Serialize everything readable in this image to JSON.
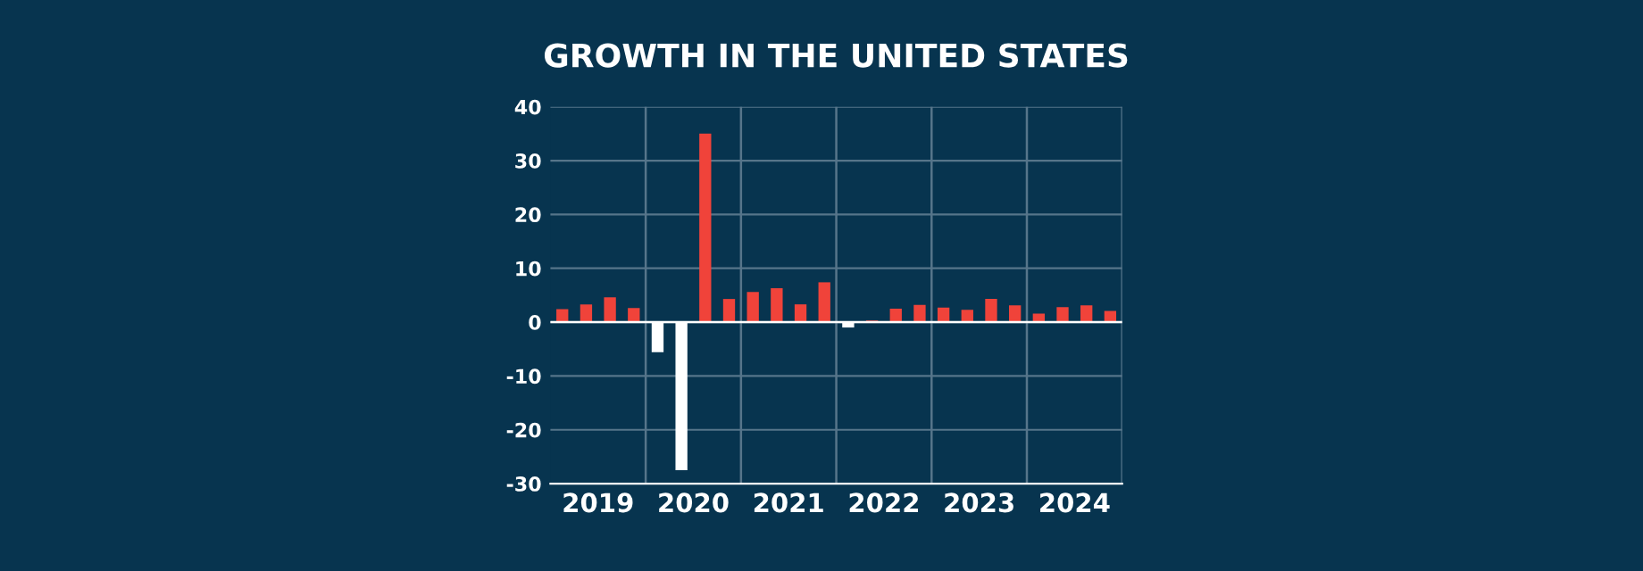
{
  "chart_data": {
    "type": "bar",
    "title": "GROWTH IN THE UNITED STATES",
    "x": [
      2019.125,
      2019.375,
      2019.625,
      2019.875,
      2020.125,
      2020.375,
      2020.625,
      2020.875,
      2021.125,
      2021.375,
      2021.625,
      2021.875,
      2022.125,
      2022.375,
      2022.625,
      2022.875,
      2023.125,
      2023.375,
      2023.625,
      2023.875,
      2024.125,
      2024.375,
      2024.625,
      2024.875
    ],
    "values": [
      2.4,
      3.3,
      4.6,
      2.6,
      -5.6,
      -27.5,
      35.0,
      4.3,
      5.6,
      6.3,
      3.3,
      7.4,
      -1.0,
      0.3,
      2.5,
      3.2,
      2.7,
      2.3,
      4.3,
      3.1,
      1.6,
      2.8,
      3.1,
      2.1
    ],
    "colors": [
      "#f0433a",
      "#f0433a",
      "#f0433a",
      "#f0433a",
      "#ffffff",
      "#ffffff",
      "#f0433a",
      "#f0433a",
      "#f0433a",
      "#f0433a",
      "#f0433a",
      "#f0433a",
      "#ffffff",
      "#f0433a",
      "#f0433a",
      "#f0433a",
      "#f0433a",
      "#f0433a",
      "#f0433a",
      "#f0433a",
      "#f0433a",
      "#f0433a",
      "#f0433a",
      "#f0433a"
    ],
    "xlim": [
      2019,
      2025
    ],
    "xticks": [
      {
        "value": 2019.5,
        "label": "2019"
      },
      {
        "value": 2020.5,
        "label": "2020"
      },
      {
        "value": 2021.5,
        "label": "2021"
      },
      {
        "value": 2022.5,
        "label": "2022"
      },
      {
        "value": 2023.5,
        "label": "2023"
      },
      {
        "value": 2024.5,
        "label": "2024"
      }
    ],
    "ylim": [
      -30,
      40
    ],
    "yticks": [
      -30,
      -20,
      -10,
      0,
      10,
      20,
      30,
      40
    ],
    "grid": "y",
    "ref_lines": [
      {
        "axis": "x",
        "value": 2020,
        "color": "#56758a"
      },
      {
        "axis": "x",
        "value": 2021,
        "color": "#56758a"
      },
      {
        "axis": "x",
        "value": 2022,
        "color": "#56758a"
      },
      {
        "axis": "x",
        "value": 2023,
        "color": "#56758a"
      },
      {
        "axis": "x",
        "value": 2024,
        "color": "#56758a"
      },
      {
        "axis": "x",
        "value": 2025,
        "color": "#56758a"
      },
      {
        "axis": "y",
        "value": 0,
        "color": "#ffffff"
      }
    ]
  }
}
